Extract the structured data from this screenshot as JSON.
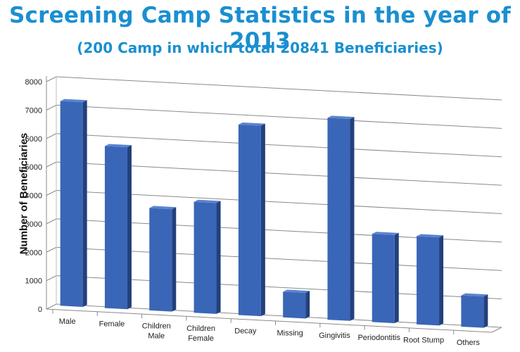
{
  "chart_data": {
    "type": "bar",
    "title": "Screening Camp Statistics in the year of 2013",
    "subtitle": "(200 Camp in which total 20841 Beneficiaries)",
    "xlabel": "",
    "ylabel": "Number of Beneficiaries",
    "ylim": [
      0,
      8000
    ],
    "yticks": [
      0,
      1000,
      2000,
      3000,
      4000,
      5000,
      6000,
      7000,
      8000
    ],
    "grid": true,
    "legend": "none",
    "categories": [
      [
        "Male"
      ],
      [
        "Female"
      ],
      [
        "Children",
        "Male"
      ],
      [
        "Children",
        "Female"
      ],
      [
        "Decay"
      ],
      [
        "Missing"
      ],
      [
        "Gingivitis"
      ],
      [
        "Periodontitis"
      ],
      [
        "Root Stump"
      ],
      [
        "Others"
      ]
    ],
    "values": [
      7200,
      5700,
      3600,
      3900,
      6700,
      900,
      7100,
      3100,
      3100,
      1100
    ],
    "colors": {
      "bar_front": "#3a66b8",
      "bar_side": "#22407c",
      "bar_top": "#5a84cf"
    }
  }
}
